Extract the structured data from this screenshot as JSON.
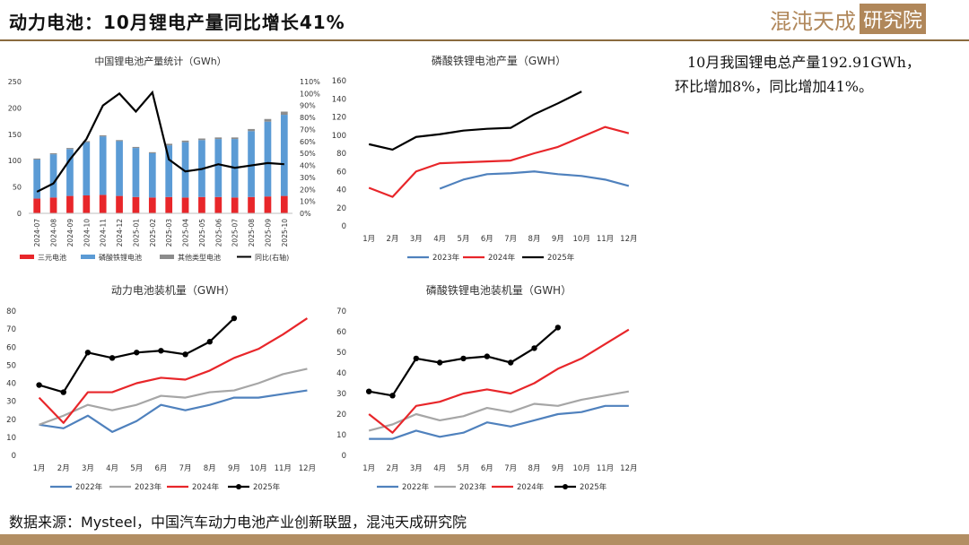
{
  "header": {
    "title": "动力电池：10月锂电产量同比增长41%"
  },
  "logo": {
    "main": "混沌天成",
    "boxed": "研究院"
  },
  "summary": {
    "line1": "10月我国锂电总产量192.91GWh，",
    "line2": "环比增加8%，同比增加41%。"
  },
  "source": "数据来源：Mysteel，中国汽车动力电池产业创新联盟，混沌天成研究院",
  "colors": {
    "sanyuan": "#e8262a",
    "lfp": "#5b9bd5",
    "other": "#8c8c8c",
    "yoy": "#000000",
    "y2022": "#4f81bd",
    "y2023": "#a6a6a6",
    "y2024": "#e8262a",
    "y2025": "#000000"
  },
  "chart_data": [
    {
      "id": "chart1",
      "type": "bar",
      "stacked": true,
      "title": "中国锂电池产量统计（GWh）",
      "categories": [
        "2024-07",
        "2024-08",
        "2024-09",
        "2024-10",
        "2024-11",
        "2024-12",
        "2025-01",
        "2025-02",
        "2025-03",
        "2025-04",
        "2025-05",
        "2025-06",
        "2025-07",
        "2025-08",
        "2025-09",
        "2025-10"
      ],
      "series": [
        {
          "name": "三元电池",
          "color": "#e8262a",
          "values": [
            28,
            30,
            33,
            34,
            35,
            33,
            31,
            30,
            31,
            30,
            31,
            31,
            30,
            31,
            32,
            33
          ]
        },
        {
          "name": "磷酸铁锂电池",
          "color": "#5b9bd5",
          "values": [
            74,
            82,
            89,
            101,
            111,
            104,
            93,
            84,
            98,
            105,
            108,
            110,
            111,
            125,
            142,
            154
          ]
        },
        {
          "name": "其他类型电池",
          "color": "#8c8c8c",
          "values": [
            2,
            2,
            2,
            2,
            2,
            2,
            2,
            2,
            3,
            3,
            3,
            3,
            3,
            4,
            5,
            6
          ]
        }
      ],
      "line": {
        "name": "同比(右轴)",
        "color": "#000000",
        "values": [
          18,
          25,
          45,
          62,
          90,
          100,
          85,
          101,
          45,
          35,
          37,
          41,
          38,
          40,
          42,
          41
        ]
      },
      "ylim": [
        0,
        250
      ],
      "yticks": [
        0,
        50,
        100,
        150,
        200,
        250
      ],
      "y2lim": [
        0,
        110
      ],
      "y2ticks": [
        "0%",
        "10%",
        "20%",
        "30%",
        "40%",
        "50%",
        "60%",
        "70%",
        "80%",
        "90%",
        "100%",
        "110%"
      ]
    },
    {
      "id": "chart2",
      "type": "line",
      "title": "磷酸铁锂电池产量（GWH）",
      "categories": [
        "1月",
        "2月",
        "3月",
        "4月",
        "5月",
        "6月",
        "7月",
        "8月",
        "9月",
        "10月",
        "11月",
        "12月"
      ],
      "series": [
        {
          "name": "2023年",
          "color": "#4f81bd",
          "values": [
            null,
            null,
            null,
            41,
            51,
            57,
            58,
            60,
            57,
            55,
            51,
            44
          ]
        },
        {
          "name": "2024年",
          "color": "#e8262a",
          "values": [
            42,
            32,
            60,
            69,
            70,
            71,
            72,
            80,
            87,
            98,
            109,
            102
          ]
        },
        {
          "name": "2025年",
          "color": "#000000",
          "values": [
            90,
            84,
            98,
            101,
            105,
            107,
            108,
            123,
            135,
            148,
            null,
            null
          ]
        }
      ],
      "ylim": [
        0,
        160
      ],
      "yticks": [
        0,
        20,
        40,
        60,
        80,
        100,
        120,
        140,
        160
      ]
    },
    {
      "id": "chart3",
      "type": "line",
      "title": "动力电池装机量（GWH）",
      "categories": [
        "1月",
        "2月",
        "3月",
        "4月",
        "5月",
        "6月",
        "7月",
        "8月",
        "9月",
        "10月",
        "11月",
        "12月"
      ],
      "series": [
        {
          "name": "2022年",
          "color": "#4f81bd",
          "marker": false,
          "values": [
            17,
            15,
            22,
            13,
            19,
            28,
            25,
            28,
            32,
            32,
            34,
            36
          ]
        },
        {
          "name": "2023年",
          "color": "#a6a6a6",
          "marker": false,
          "values": [
            17,
            22,
            28,
            25,
            28,
            33,
            32,
            35,
            36,
            40,
            45,
            48
          ]
        },
        {
          "name": "2024年",
          "color": "#e8262a",
          "marker": false,
          "values": [
            32,
            18,
            35,
            35,
            40,
            43,
            42,
            47,
            54,
            59,
            67,
            76
          ]
        },
        {
          "name": "2025年",
          "color": "#000000",
          "marker": true,
          "values": [
            39,
            35,
            57,
            54,
            57,
            58,
            56,
            63,
            76,
            null,
            null,
            null
          ]
        }
      ],
      "ylim": [
        0,
        80
      ],
      "yticks": [
        0,
        10,
        20,
        30,
        40,
        50,
        60,
        70,
        80
      ]
    },
    {
      "id": "chart4",
      "type": "line",
      "title": "磷酸铁锂电池装机量（GWH）",
      "categories": [
        "1月",
        "2月",
        "3月",
        "4月",
        "5月",
        "6月",
        "7月",
        "8月",
        "9月",
        "10月",
        "11月",
        "12月"
      ],
      "series": [
        {
          "name": "2022年",
          "color": "#4f81bd",
          "marker": false,
          "values": [
            8,
            8,
            12,
            9,
            11,
            16,
            14,
            17,
            20,
            21,
            24,
            24
          ]
        },
        {
          "name": "2023年",
          "color": "#a6a6a6",
          "marker": false,
          "values": [
            12,
            15,
            20,
            17,
            19,
            23,
            21,
            25,
            24,
            27,
            29,
            31
          ]
        },
        {
          "name": "2024年",
          "color": "#e8262a",
          "marker": false,
          "values": [
            20,
            11,
            24,
            26,
            30,
            32,
            30,
            35,
            42,
            47,
            54,
            61
          ]
        },
        {
          "name": "2025年",
          "color": "#000000",
          "marker": true,
          "values": [
            31,
            29,
            47,
            45,
            47,
            48,
            45,
            52,
            62,
            null,
            null,
            null
          ]
        }
      ],
      "ylim": [
        0,
        70
      ],
      "yticks": [
        0,
        10,
        20,
        30,
        40,
        50,
        60,
        70
      ]
    }
  ]
}
